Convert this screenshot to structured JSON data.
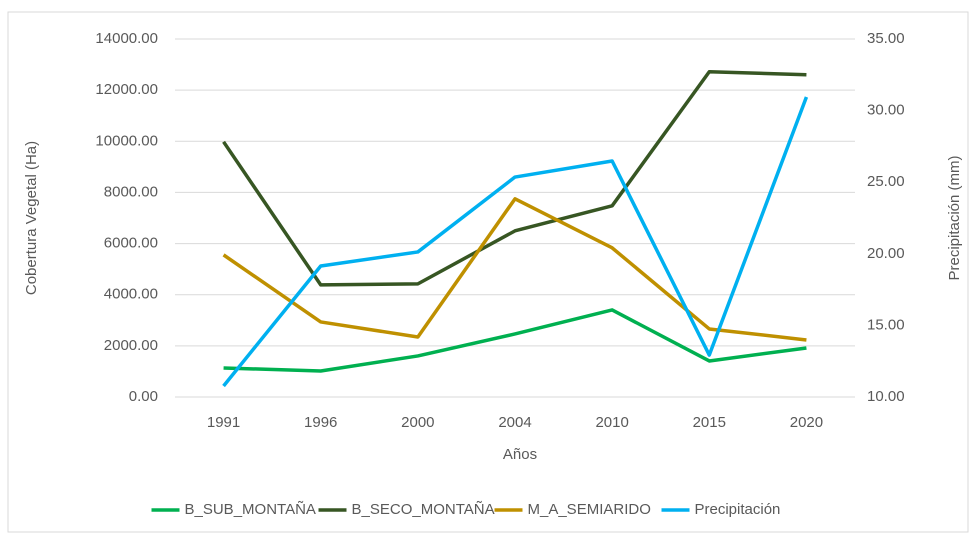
{
  "chart_data": {
    "type": "line",
    "xlabel": "Años",
    "ylabel": "Cobertura Vegetal (Ha)",
    "y2label": "Precipitación (mm)",
    "categories": [
      "1991",
      "1996",
      "2000",
      "2004",
      "2010",
      "2015",
      "2020"
    ],
    "series": [
      {
        "name": "B_SUB_MONTAÑA",
        "color": "#00b050",
        "values": [
          1135,
          1018,
          1605,
          2466,
          3405,
          1409,
          1918
        ]
      },
      {
        "name": "B_SECO_MONTAÑA",
        "color": "#375623",
        "values": [
          9980,
          4384,
          4423,
          6497,
          7476,
          12720,
          12603
        ]
      },
      {
        "name": "M_A_SEMIARIDO",
        "color": "#bf9000",
        "values": [
          5558,
          2935,
          2348,
          7750,
          5832,
          2661,
          2231
        ]
      },
      {
        "name": "Precipitación",
        "color": "#00b0f0",
        "axis": "y2",
        "values": [
          10.77,
          19.15,
          20.13,
          25.36,
          26.48,
          12.93,
          30.95
        ]
      }
    ],
    "ylim": [
      0,
      14000
    ],
    "yticks": [
      {
        "value": 0,
        "label": "0.00"
      },
      {
        "value": 2000,
        "label": "2000.00"
      },
      {
        "value": 4000,
        "label": "4000.00"
      },
      {
        "value": 6000,
        "label": "6000.00"
      },
      {
        "value": 8000,
        "label": "8000.00"
      },
      {
        "value": 10000,
        "label": "10000.00"
      },
      {
        "value": 12000,
        "label": "12000.00"
      },
      {
        "value": 14000,
        "label": "14000.00"
      }
    ],
    "y2lim": [
      10,
      35
    ],
    "y2ticks": [
      {
        "value": 10,
        "label": "10.00"
      },
      {
        "value": 15,
        "label": "15.00"
      },
      {
        "value": 20,
        "label": "20.00"
      },
      {
        "value": 25,
        "label": "25.00"
      },
      {
        "value": 30,
        "label": "30.00"
      },
      {
        "value": 35,
        "label": "35.00"
      }
    ],
    "grid": true,
    "legend": "bottom"
  }
}
